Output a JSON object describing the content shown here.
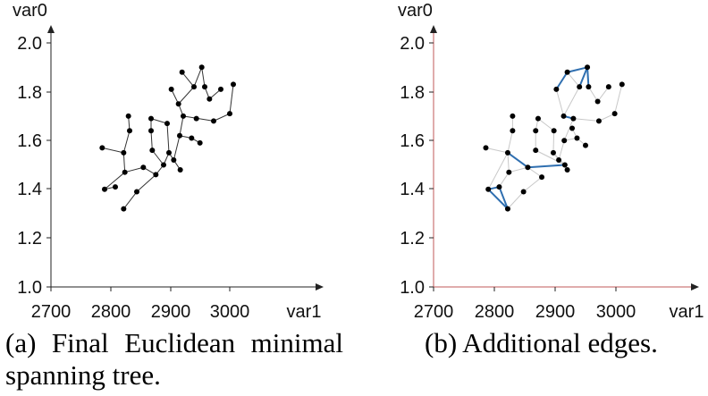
{
  "chart_data": [
    {
      "type": "scatter",
      "panel": "a",
      "caption": "(a) Final Euclidean minimal spanning tree.",
      "xlabel": "var1",
      "ylabel": "var0",
      "xlim": [
        2700,
        3000
      ],
      "ylim": [
        1.0,
        2.0
      ],
      "xticks": [
        "2700",
        "2800",
        "2900",
        "3000"
      ],
      "yticks": [
        "1.0",
        "1.2",
        "1.4",
        "1.6",
        "1.8",
        "2.0"
      ],
      "points": [
        [
          2786,
          1.57
        ],
        [
          2822,
          1.55
        ],
        [
          2824,
          1.47
        ],
        [
          2808,
          1.41
        ],
        [
          2790,
          1.4
        ],
        [
          2822,
          1.32
        ],
        [
          2844,
          1.39
        ],
        [
          2855,
          1.49
        ],
        [
          2876,
          1.46
        ],
        [
          2889,
          1.5
        ],
        [
          2870,
          1.56
        ],
        [
          2868,
          1.64
        ],
        [
          2868,
          1.69
        ],
        [
          2895,
          1.67
        ],
        [
          2898,
          1.55
        ],
        [
          2906,
          1.52
        ],
        [
          2917,
          1.48
        ],
        [
          2916,
          1.62
        ],
        [
          2914,
          1.75
        ],
        [
          2922,
          1.7
        ],
        [
          2902,
          1.81
        ],
        [
          2920,
          1.88
        ],
        [
          2940,
          1.82
        ],
        [
          2953,
          1.9
        ],
        [
          2958,
          1.82
        ],
        [
          2966,
          1.77
        ],
        [
          2985,
          1.81
        ],
        [
          3006,
          1.83
        ],
        [
          3000,
          1.71
        ],
        [
          2973,
          1.68
        ],
        [
          2936,
          1.61
        ],
        [
          2950,
          1.59
        ],
        [
          2944,
          1.69
        ],
        [
          2830,
          1.7
        ],
        [
          2832,
          1.64
        ]
      ],
      "edges": [
        [
          0,
          1
        ],
        [
          1,
          2
        ],
        [
          2,
          4
        ],
        [
          3,
          4
        ],
        [
          1,
          34
        ],
        [
          34,
          33
        ],
        [
          2,
          7
        ],
        [
          7,
          8
        ],
        [
          8,
          6
        ],
        [
          6,
          5
        ],
        [
          8,
          9
        ],
        [
          9,
          10
        ],
        [
          10,
          11
        ],
        [
          11,
          12
        ],
        [
          9,
          14
        ],
        [
          14,
          15
        ],
        [
          15,
          16
        ],
        [
          15,
          17
        ],
        [
          17,
          19
        ],
        [
          19,
          18
        ],
        [
          18,
          20
        ],
        [
          19,
          29
        ],
        [
          29,
          28
        ],
        [
          28,
          27
        ],
        [
          21,
          22
        ],
        [
          22,
          23
        ],
        [
          23,
          24
        ],
        [
          24,
          25
        ],
        [
          25,
          26
        ],
        [
          17,
          30
        ],
        [
          30,
          31
        ],
        [
          12,
          13
        ],
        [
          13,
          14
        ],
        [
          22,
          18
        ]
      ]
    },
    {
      "type": "scatter",
      "panel": "b",
      "caption": "(b) Additional edges.",
      "xlabel": "var1",
      "ylabel": "var0",
      "xlim": [
        2700,
        3000
      ],
      "ylim": [
        1.0,
        2.0
      ],
      "xticks": [
        "2700",
        "2800",
        "2900",
        "3000"
      ],
      "yticks": [
        "1.0",
        "1.2",
        "1.4",
        "1.6",
        "1.8",
        "2.0"
      ],
      "points": [
        [
          2786,
          1.57
        ],
        [
          2822,
          1.55
        ],
        [
          2824,
          1.47
        ],
        [
          2790,
          1.4
        ],
        [
          2808,
          1.41
        ],
        [
          2822,
          1.32
        ],
        [
          2848,
          1.39
        ],
        [
          2855,
          1.49
        ],
        [
          2878,
          1.45
        ],
        [
          2916,
          1.5
        ],
        [
          2868,
          1.56
        ],
        [
          2868,
          1.64
        ],
        [
          2872,
          1.69
        ],
        [
          2898,
          1.64
        ],
        [
          2897,
          1.55
        ],
        [
          2906,
          1.52
        ],
        [
          2920,
          1.48
        ],
        [
          2915,
          1.6
        ],
        [
          2914,
          1.7
        ],
        [
          2930,
          1.69
        ],
        [
          2902,
          1.81
        ],
        [
          2920,
          1.88
        ],
        [
          2940,
          1.82
        ],
        [
          2953,
          1.9
        ],
        [
          2955,
          1.82
        ],
        [
          2970,
          1.76
        ],
        [
          2988,
          1.82
        ],
        [
          3010,
          1.83
        ],
        [
          2998,
          1.71
        ],
        [
          2972,
          1.68
        ],
        [
          2936,
          1.61
        ],
        [
          2950,
          1.58
        ],
        [
          2928,
          1.65
        ],
        [
          2830,
          1.7
        ],
        [
          2830,
          1.64
        ]
      ],
      "additional_edges": [
        [
          3,
          4
        ],
        [
          4,
          5
        ],
        [
          3,
          5
        ],
        [
          1,
          7
        ],
        [
          7,
          9
        ],
        [
          20,
          21
        ],
        [
          21,
          23
        ],
        [
          22,
          23
        ],
        [
          23,
          24
        ],
        [
          18,
          19
        ]
      ],
      "tree_edges": [
        [
          0,
          1
        ],
        [
          1,
          2
        ],
        [
          2,
          4
        ],
        [
          1,
          34
        ],
        [
          34,
          33
        ],
        [
          2,
          7
        ],
        [
          7,
          8
        ],
        [
          8,
          6
        ],
        [
          6,
          5
        ],
        [
          9,
          10
        ],
        [
          10,
          11
        ],
        [
          11,
          12
        ],
        [
          9,
          14
        ],
        [
          14,
          15
        ],
        [
          15,
          16
        ],
        [
          15,
          17
        ],
        [
          17,
          19
        ],
        [
          19,
          18
        ],
        [
          18,
          20
        ],
        [
          19,
          29
        ],
        [
          29,
          28
        ],
        [
          28,
          27
        ],
        [
          21,
          22
        ],
        [
          24,
          25
        ],
        [
          25,
          26
        ],
        [
          17,
          30
        ],
        [
          30,
          31
        ],
        [
          12,
          13
        ],
        [
          13,
          14
        ],
        [
          22,
          18
        ],
        [
          32,
          30
        ],
        [
          3,
          1
        ]
      ],
      "colors": {
        "additional": "#2f6fb0",
        "tree": "#c8c8c8",
        "axis_b": "#c05a5a"
      }
    }
  ]
}
